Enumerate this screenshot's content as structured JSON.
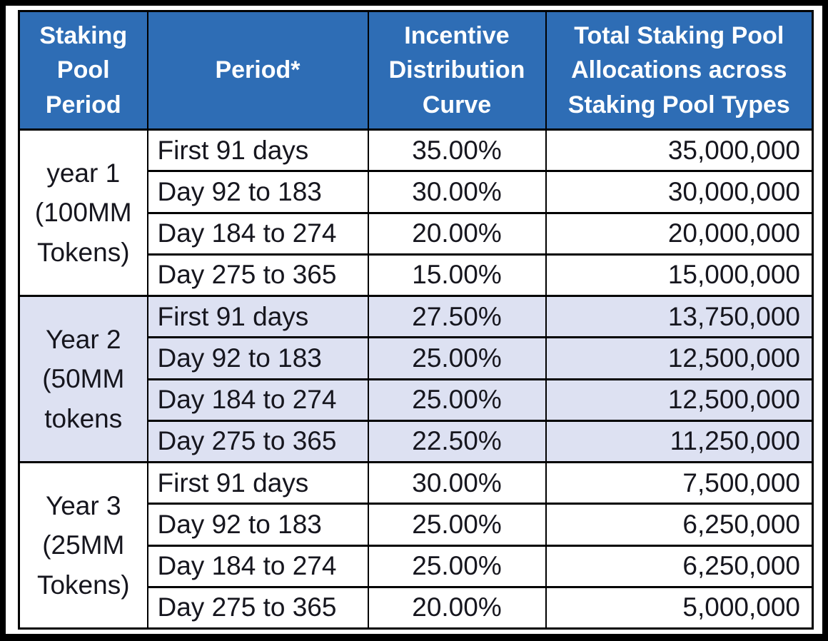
{
  "colors": {
    "frame": "#000000",
    "border": "#000000",
    "header_bg": "#2e6db5",
    "header_text": "#ffffff",
    "row_bg": "#ffffff",
    "band_bg": "#dde1f2",
    "body_text": "#16161e"
  },
  "table": {
    "headers": [
      "Staking Pool Period",
      "Period*",
      "Incentive Distribution Curve",
      "Total Staking Pool Allocations across Staking Pool Types"
    ],
    "groups": [
      {
        "label": "year 1 (100MM Tokens)",
        "rows": [
          {
            "period": "First 91 days",
            "curve": "35.00%",
            "allocation": "35,000,000"
          },
          {
            "period": "Day 92 to 183",
            "curve": "30.00%",
            "allocation": "30,000,000"
          },
          {
            "period": "Day 184 to 274",
            "curve": "20.00%",
            "allocation": "20,000,000"
          },
          {
            "period": "Day 275 to 365",
            "curve": "15.00%",
            "allocation": "15,000,000"
          }
        ]
      },
      {
        "label": "Year 2 (50MM tokens",
        "rows": [
          {
            "period": "First 91 days",
            "curve": "27.50%",
            "allocation": "13,750,000"
          },
          {
            "period": "Day 92 to 183",
            "curve": "25.00%",
            "allocation": "12,500,000"
          },
          {
            "period": "Day 184 to 274",
            "curve": "25.00%",
            "allocation": "12,500,000"
          },
          {
            "period": "Day 275 to 365",
            "curve": "22.50%",
            "allocation": "11,250,000"
          }
        ]
      },
      {
        "label": "Year 3 (25MM Tokens)",
        "rows": [
          {
            "period": "First 91 days",
            "curve": "30.00%",
            "allocation": "7,500,000"
          },
          {
            "period": "Day 92 to 183",
            "curve": "25.00%",
            "allocation": "6,250,000"
          },
          {
            "period": "Day 184 to 274",
            "curve": "25.00%",
            "allocation": "6,250,000"
          },
          {
            "period": "Day 275 to 365",
            "curve": "20.00%",
            "allocation": "5,000,000"
          }
        ]
      }
    ]
  },
  "chart_data": {
    "type": "table",
    "columns": [
      "Staking Pool Period",
      "Period*",
      "Incentive Distribution Curve",
      "Total Staking Pool Allocations across Staking Pool Types"
    ],
    "rows": [
      [
        "year 1 (100MM Tokens)",
        "First 91 days",
        "35.00%",
        "35,000,000"
      ],
      [
        "year 1 (100MM Tokens)",
        "Day 92 to 183",
        "30.00%",
        "30,000,000"
      ],
      [
        "year 1 (100MM Tokens)",
        "Day 184 to 274",
        "20.00%",
        "20,000,000"
      ],
      [
        "year 1 (100MM Tokens)",
        "Day 275 to 365",
        "15.00%",
        "15,000,000"
      ],
      [
        "Year 2 (50MM tokens",
        "First 91 days",
        "27.50%",
        "13,750,000"
      ],
      [
        "Year 2 (50MM tokens",
        "Day 92 to 183",
        "25.00%",
        "12,500,000"
      ],
      [
        "Year 2 (50MM tokens",
        "Day 184 to 274",
        "25.00%",
        "12,500,000"
      ],
      [
        "Year 2 (50MM tokens",
        "Day 275 to 365",
        "22.50%",
        "11,250,000"
      ],
      [
        "Year 3 (25MM Tokens)",
        "First 91 days",
        "30.00%",
        "7,500,000"
      ],
      [
        "Year 3 (25MM Tokens)",
        "Day 92 to 183",
        "25.00%",
        "6,250,000"
      ],
      [
        "Year 3 (25MM Tokens)",
        "Day 184 to 274",
        "25.00%",
        "6,250,000"
      ],
      [
        "Year 3 (25MM Tokens)",
        "Day 275 to 365",
        "20.00%",
        "5,000,000"
      ]
    ]
  }
}
